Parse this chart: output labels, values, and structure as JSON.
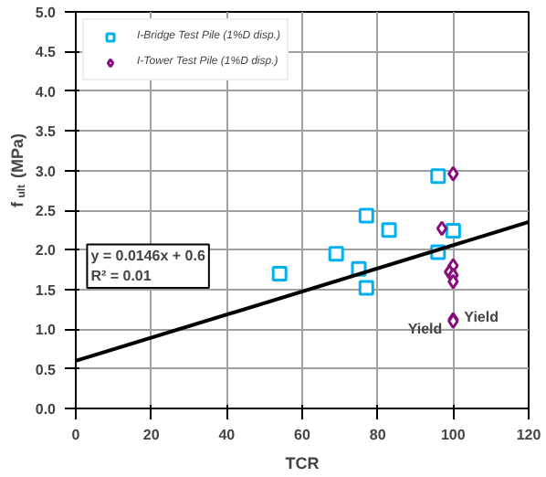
{
  "chart_data": {
    "type": "scatter",
    "xlabel": "TCR",
    "ylabel": "f$_{ult}$ (MPa)",
    "xlim": [
      0,
      120
    ],
    "ylim": [
      0,
      5
    ],
    "xticks": [
      0,
      20,
      40,
      60,
      80,
      100,
      120
    ],
    "yticks": [
      {
        "value": 0,
        "label": "0.0"
      },
      {
        "value": 0.5,
        "label": "0.5"
      },
      {
        "value": 1,
        "label": "1.0"
      },
      {
        "value": 1.5,
        "label": "1.5"
      },
      {
        "value": 2,
        "label": "2.0"
      },
      {
        "value": 2.5,
        "label": "2.5"
      },
      {
        "value": 3,
        "label": "3.0"
      },
      {
        "value": 3.5,
        "label": "3.5"
      },
      {
        "value": 4,
        "label": "4.0"
      },
      {
        "value": 4.5,
        "label": "4.5"
      },
      {
        "value": 5,
        "label": "5.0"
      }
    ],
    "grid": true,
    "legend": "top left",
    "series": [
      {
        "name": "I-Bridge Test Pile (1%D disp.)",
        "color": "#00b0f0",
        "marker": "square",
        "x": [
          54,
          69,
          75,
          77,
          77,
          83,
          96,
          96,
          100
        ],
        "values": [
          1.7,
          1.95,
          1.76,
          1.52,
          2.43,
          2.25,
          2.93,
          1.97,
          2.24
        ]
      },
      {
        "name": "I-Tower Test Pile (1%D disp.)",
        "color": "#8b0a7f",
        "marker": "diamond",
        "x": [
          100,
          97,
          100,
          99,
          100,
          100,
          100,
          100
        ],
        "values": [
          2.96,
          2.27,
          1.8,
          1.72,
          1.68,
          1.6,
          1.12,
          1.1
        ]
      },
      {
        "type": "line",
        "color": "#000000",
        "x": [
          0,
          120
        ],
        "values": [
          0.6,
          2.35
        ]
      }
    ],
    "annotations": [
      "y = 0.0146x + 0.6\nR² = 0.01",
      {
        "text": "Yield",
        "x": 100,
        "y": 1.0
      },
      {
        "text": "Yield",
        "x": 100,
        "y": 1.15
      }
    ]
  }
}
